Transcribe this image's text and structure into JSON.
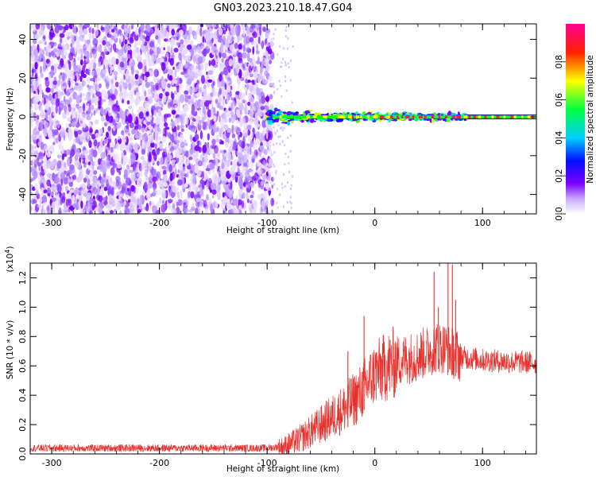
{
  "title": "GN03.2023.210.18.47.G04",
  "chart_data": [
    {
      "type": "heatmap",
      "xlabel": "Height of straight line (km)",
      "ylabel": "Frequency (Hz)",
      "xlim": [
        -320,
        150
      ],
      "ylim": [
        -50,
        48
      ],
      "xticks": [
        -300,
        -200,
        -100,
        0,
        100
      ],
      "yticks": [
        -40,
        -20,
        0,
        20,
        40
      ],
      "noise_region_x": [
        -320,
        -95
      ],
      "signal_region_x": [
        -100,
        150
      ],
      "signal_frequency_hz": 0,
      "colorbar": {
        "label": "Normalized spectral amplitude",
        "range": [
          0.0,
          1.0
        ],
        "ticks": [
          0.0,
          0.2,
          0.4,
          0.6,
          0.8
        ],
        "colormap": [
          "#ffffff",
          "#7b00ff",
          "#0000ff",
          "#00ffff",
          "#00ff00",
          "#ffff00",
          "#ff0000",
          "#ff00aa"
        ]
      }
    },
    {
      "type": "line",
      "xlabel": "Height of straight line (km)",
      "ylabel": "SNR (10 * v/v)",
      "y_multiplier": "(x10",
      "y_multiplier_exp": "4",
      "y_multiplier_close": ")",
      "xlim": [
        -320,
        150
      ],
      "ylim": [
        0,
        1.3
      ],
      "xticks": [
        -300,
        -200,
        -100,
        0,
        100
      ],
      "yticks": [
        0.0,
        0.2,
        0.4,
        0.6,
        0.8,
        1.0,
        1.2
      ],
      "line_color": "#e8312d",
      "series": [
        {
          "x": [
            -320,
            -250,
            -150,
            -100,
            -85,
            -70,
            -50,
            -30,
            -15,
            -10,
            -5,
            0,
            20,
            40,
            50,
            55,
            60,
            65,
            70,
            80,
            100,
            120,
            150
          ],
          "y": [
            0.04,
            0.04,
            0.04,
            0.04,
            0.05,
            0.1,
            0.2,
            0.3,
            0.4,
            0.45,
            0.5,
            0.55,
            0.63,
            0.67,
            0.7,
            0.72,
            0.73,
            0.72,
            0.7,
            0.66,
            0.64,
            0.63,
            0.62
          ]
        }
      ],
      "spikes": [
        {
          "x": -10,
          "y": 0.94
        },
        {
          "x": -25,
          "y": 0.7
        },
        {
          "x": 55,
          "y": 1.24
        },
        {
          "x": 59,
          "y": 1.0
        },
        {
          "x": 68,
          "y": 1.3
        },
        {
          "x": 72,
          "y": 1.29
        },
        {
          "x": 75,
          "y": 1.05
        }
      ]
    }
  ]
}
